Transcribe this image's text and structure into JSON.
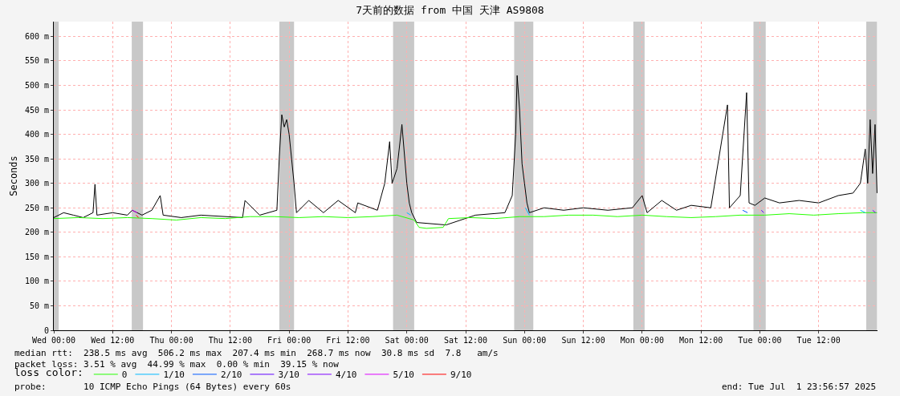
{
  "chart_data": {
    "type": "line",
    "title": "7天前的数据 from 中国 天津 AS9808",
    "ylabel": "Seconds",
    "xlim": [
      "2025-06-25T00:00",
      "2025-07-02T00:00"
    ],
    "xticks": [
      {
        "value": "2025-06-25T00:00",
        "label": "Wed 00:00"
      },
      {
        "value": "2025-06-25T12:00",
        "label": "Wed 12:00"
      },
      {
        "value": "2025-06-26T00:00",
        "label": "Thu 00:00"
      },
      {
        "value": "2025-06-26T12:00",
        "label": "Thu 12:00"
      },
      {
        "value": "2025-06-27T00:00",
        "label": "Fri 00:00"
      },
      {
        "value": "2025-06-27T12:00",
        "label": "Fri 12:00"
      },
      {
        "value": "2025-06-28T00:00",
        "label": "Sat 00:00"
      },
      {
        "value": "2025-06-28T12:00",
        "label": "Sat 12:00"
      },
      {
        "value": "2025-06-29T00:00",
        "label": "Sun 00:00"
      },
      {
        "value": "2025-06-29T12:00",
        "label": "Sun 12:00"
      },
      {
        "value": "2025-06-30T00:00",
        "label": "Mon 00:00"
      },
      {
        "value": "2025-06-30T12:00",
        "label": "Mon 12:00"
      },
      {
        "value": "2025-07-01T00:00",
        "label": "Tue 00:00"
      },
      {
        "value": "2025-07-01T12:00",
        "label": "Tue 12:00"
      }
    ],
    "ylim": [
      0,
      630
    ],
    "yticks": [
      0,
      {
        "value": 50,
        "label": "50 m"
      },
      {
        "value": 100,
        "label": "100 m"
      },
      {
        "value": 150,
        "label": "150 m"
      },
      {
        "value": 200,
        "label": "200 m"
      },
      {
        "value": 250,
        "label": "250 m"
      },
      {
        "value": 300,
        "label": "300 m"
      },
      {
        "value": 350,
        "label": "350 m"
      },
      {
        "value": 400,
        "label": "400 m"
      },
      {
        "value": 450,
        "label": "450 m"
      },
      {
        "value": 500,
        "label": "500 m"
      },
      {
        "value": 550,
        "label": "550 m"
      },
      {
        "value": 600,
        "label": "600 m"
      }
    ],
    "grid": true,
    "legend": "bottom",
    "legend_title": "loss color:",
    "series": [
      {
        "color": "#000000",
        "x": [
          "2025-06-25T00:00",
          "2025-06-25T02:00",
          "2025-06-25T04:00",
          "2025-06-25T06:00",
          "2025-06-25T08:00",
          "2025-06-25T08:24",
          "2025-06-25T08:48",
          "2025-06-25T12:00",
          "2025-06-25T15:00",
          "2025-06-25T16:00",
          "2025-06-25T17:00",
          "2025-06-25T18:00",
          "2025-06-25T20:00",
          "2025-06-25T21:42",
          "2025-06-25T22:18",
          "2025-06-26T02:00",
          "2025-06-26T06:00",
          "2025-06-26T14:30",
          "2025-06-26T15:00",
          "2025-06-26T18:00",
          "2025-06-26T21:30",
          "2025-06-26T22:00",
          "2025-06-26T22:30",
          "2025-06-26T23:00",
          "2025-06-26T23:30",
          "2025-06-27T00:00",
          "2025-06-27T00:30",
          "2025-06-27T01:00",
          "2025-06-27T01:30",
          "2025-06-27T04:00",
          "2025-06-27T07:00",
          "2025-06-27T10:00",
          "2025-06-27T13:30",
          "2025-06-27T14:00",
          "2025-06-27T18:00",
          "2025-06-27T19:30",
          "2025-06-27T20:30",
          "2025-06-27T21:00",
          "2025-06-27T22:00",
          "2025-06-27T23:00",
          "2025-06-27T23:30",
          "2025-06-28T00:00",
          "2025-06-28T00:30",
          "2025-06-28T01:00",
          "2025-06-28T02:00",
          "2025-06-28T08:00",
          "2025-06-28T14:00",
          "2025-06-28T20:00",
          "2025-06-28T21:30",
          "2025-06-28T22:12",
          "2025-06-28T22:30",
          "2025-06-28T23:00",
          "2025-06-28T23:30",
          "2025-06-29T00:00",
          "2025-06-29T00:30",
          "2025-06-29T01:00",
          "2025-06-29T04:00",
          "2025-06-29T08:00",
          "2025-06-29T12:00",
          "2025-06-29T17:00",
          "2025-06-29T22:00",
          "2025-06-30T00:00",
          "2025-06-30T01:00",
          "2025-06-30T04:00",
          "2025-06-30T07:00",
          "2025-06-30T10:00",
          "2025-06-30T14:00",
          "2025-06-30T17:24",
          "2025-06-30T17:48",
          "2025-06-30T20:00",
          "2025-06-30T21:18",
          "2025-06-30T21:48",
          "2025-06-30T23:00",
          "2025-07-01T01:00",
          "2025-07-01T04:00",
          "2025-07-01T08:00",
          "2025-07-01T12:00",
          "2025-07-01T16:00",
          "2025-07-01T19:00",
          "2025-07-01T20:30",
          "2025-07-01T21:30",
          "2025-07-01T22:00",
          "2025-07-01T22:30",
          "2025-07-01T23:00",
          "2025-07-01T23:30",
          "2025-07-01T23:54"
        ],
        "values": [
          230,
          240,
          235,
          230,
          240,
          298,
          235,
          240,
          235,
          245,
          240,
          235,
          245,
          275,
          235,
          230,
          235,
          230,
          265,
          235,
          245,
          355,
          440,
          415,
          430,
          400,
          350,
          300,
          240,
          265,
          240,
          265,
          240,
          260,
          245,
          300,
          385,
          300,
          330,
          420,
          360,
          300,
          260,
          240,
          220,
          215,
          235,
          240,
          275,
          400,
          520,
          450,
          340,
          300,
          260,
          240,
          250,
          245,
          250,
          245,
          250,
          275,
          240,
          265,
          245,
          255,
          250,
          460,
          250,
          275,
          485,
          260,
          255,
          270,
          260,
          265,
          260,
          275,
          280,
          300,
          370,
          300,
          430,
          320,
          420,
          280
        ]
      },
      {
        "name": "0",
        "color": "#26ff00",
        "x": [
          "2025-06-25T00:00",
          "2025-06-25T05:00",
          "2025-06-25T10:00",
          "2025-06-25T15:00",
          "2025-06-25T20:00",
          "2025-06-26T01:00",
          "2025-06-26T06:00",
          "2025-06-26T11:00",
          "2025-06-26T16:00",
          "2025-06-26T21:00",
          "2025-06-27T02:00",
          "2025-06-27T07:00",
          "2025-06-27T12:00",
          "2025-06-27T17:00",
          "2025-06-27T22:00",
          "2025-06-28T01:30",
          "2025-06-28T02:30",
          "2025-06-28T04:00",
          "2025-06-28T07:24",
          "2025-06-28T08:30",
          "2025-06-28T13:00",
          "2025-06-28T18:00",
          "2025-06-28T23:00",
          "2025-06-29T04:00",
          "2025-06-29T09:00",
          "2025-06-29T14:00",
          "2025-06-29T19:00",
          "2025-06-30T00:00",
          "2025-06-30T05:00",
          "2025-06-30T10:00",
          "2025-06-30T15:00",
          "2025-06-30T20:00",
          "2025-07-01T01:00",
          "2025-07-01T06:00",
          "2025-07-01T11:00",
          "2025-07-01T16:00",
          "2025-07-01T21:00",
          "2025-07-01T23:54"
        ],
        "values": [
          228,
          230,
          228,
          230,
          228,
          225,
          230,
          228,
          232,
          232,
          230,
          232,
          230,
          232,
          235,
          225,
          210,
          208,
          210,
          228,
          230,
          228,
          232,
          232,
          235,
          235,
          232,
          235,
          232,
          230,
          232,
          235,
          235,
          238,
          235,
          238,
          240,
          240
        ]
      },
      {
        "name": "1/10",
        "color": "#00b8ff",
        "x": [
          "2025-06-28T00:00",
          "2025-06-28T00:48",
          "2025-06-28T12:00",
          "2025-06-29T00:12",
          "2025-06-29T01:00",
          "2025-06-30T12:00",
          "2025-07-01T20:30",
          "2025-07-01T21:30"
        ],
        "values": [
          240,
          235,
          null,
          250,
          235,
          null,
          245,
          240
        ]
      },
      {
        "name": "2/10",
        "color": "#0059ff",
        "x": [
          "2025-06-30T20:30",
          "2025-06-30T21:30"
        ],
        "values": [
          245,
          240
        ]
      },
      {
        "name": "3/10",
        "color": "#5e00ff",
        "x": [
          "2025-07-01T00:18",
          "2025-07-01T00:48"
        ],
        "values": [
          245,
          240
        ]
      },
      {
        "name": "4/10",
        "color": "#7e00ff",
        "x": [
          "2025-07-01T23:00",
          "2025-07-01T23:36"
        ],
        "values": [
          245,
          240
        ]
      },
      {
        "name": "5/10",
        "color": "#dd00ff",
        "x": [
          "2025-06-25T16:00",
          "2025-06-25T17:00"
        ],
        "values": [
          245,
          240
        ]
      },
      {
        "name": "9/10",
        "color": "#ff0000",
        "x": [
          "2025-06-25T16:48",
          "2025-06-25T17:18"
        ],
        "values": [
          235,
          230
        ]
      }
    ],
    "bands": [
      {
        "axis": "x",
        "from": "2025-06-25T00:00",
        "to": "2025-06-25T01:00",
        "color": "#c8c8c8"
      },
      {
        "axis": "x",
        "from": "2025-06-25T15:54",
        "to": "2025-06-25T18:12",
        "color": "#c8c8c8"
      },
      {
        "axis": "x",
        "from": "2025-06-26T22:00",
        "to": "2025-06-27T01:00",
        "color": "#c8c8c8"
      },
      {
        "axis": "x",
        "from": "2025-06-27T21:12",
        "to": "2025-06-28T01:30",
        "color": "#c8c8c8"
      },
      {
        "axis": "x",
        "from": "2025-06-28T21:54",
        "to": "2025-06-29T01:48",
        "color": "#c8c8c8"
      },
      {
        "axis": "x",
        "from": "2025-06-29T22:12",
        "to": "2025-06-30T00:30",
        "color": "#c8c8c8"
      },
      {
        "axis": "x",
        "from": "2025-06-30T22:42",
        "to": "2025-07-01T01:12",
        "color": "#c8c8c8"
      },
      {
        "axis": "x",
        "from": "2025-07-01T21:42",
        "to": "2025-07-01T23:54",
        "color": "#c8c8c8"
      }
    ],
    "annotations": [
      "median rtt:  238.5 ms avg  506.2 ms max  207.4 ms min  268.7 ms now  30.8 ms sd  7.8   am/s",
      "packet loss: 3.51 % avg  44.99 % max  0.00 % min  39.15 % now",
      "probe:       10 ICMP Echo Pings (64 Bytes) every 60s",
      "end: Tue Jul  1 23:56:57 2025"
    ]
  }
}
